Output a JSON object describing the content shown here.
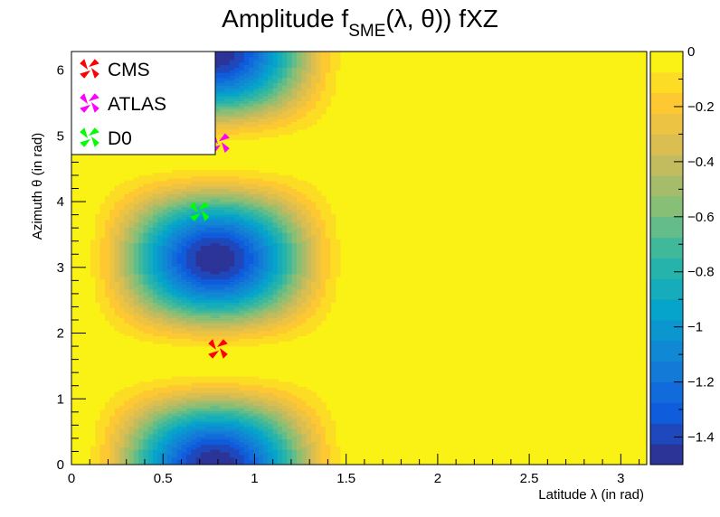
{
  "chart_data": {
    "type": "heatmap",
    "title": {
      "main": "Amplitude f",
      "subscript": "SME",
      "rest": "(λ, θ)) fXZ"
    },
    "xlabel": "Latitude  λ (in rad)",
    "ylabel": "Azimuth  θ (in rad)",
    "xlim": [
      0,
      3.14159
    ],
    "ylim": [
      0,
      6.28319
    ],
    "x_ticks": [
      "0",
      "0.5",
      "1",
      "1.5",
      "2",
      "2.5",
      "3"
    ],
    "y_ticks": [
      "0",
      "1",
      "2",
      "3",
      "4",
      "5",
      "6"
    ],
    "zlim": [
      -1.5,
      0
    ],
    "colorbar_ticks": [
      "0",
      "−0.2",
      "−0.4",
      "−0.6",
      "−0.8",
      "−1",
      "−1.2",
      "−1.4"
    ],
    "colors": {
      "palette": [
        "#352a87",
        "#0f5cdd",
        "#1481d6",
        "#06a4ca",
        "#2eb7a4",
        "#87bf77",
        "#d1bb59",
        "#fec832",
        "#f9fb0e"
      ],
      "background": "#f9fb0e",
      "cms": "#ff0000",
      "atlas": "#ff00ff",
      "d0": "#00ff00"
    },
    "markers": [
      {
        "name": "CMS",
        "x": 0.8,
        "y": 1.76
      },
      {
        "name": "ATLAS",
        "x": 0.81,
        "y": 4.89
      },
      {
        "name": "D0",
        "x": 0.7,
        "y": 3.85
      }
    ],
    "legend": {
      "position": "top-left",
      "entries": [
        "CMS",
        "ATLAS",
        "D0"
      ]
    }
  }
}
